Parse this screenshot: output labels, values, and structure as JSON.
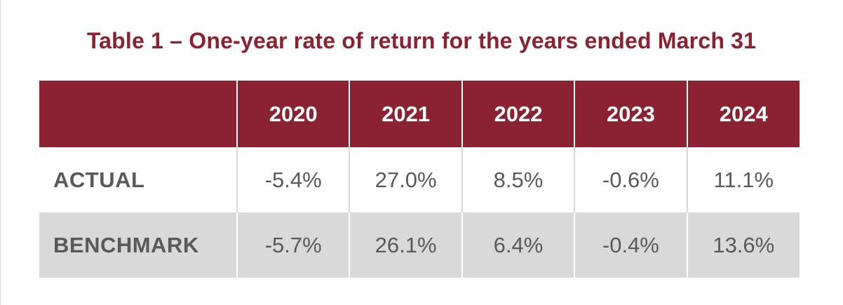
{
  "chart_data": {
    "type": "table",
    "title": "Table 1 – One-year rate of return for the years ended March 31",
    "columns": [
      "2020",
      "2021",
      "2022",
      "2023",
      "2024"
    ],
    "rows": [
      {
        "label": "ACTUAL",
        "values": [
          "-5.4%",
          "27.0%",
          "8.5%",
          "-0.6%",
          "11.1%"
        ]
      },
      {
        "label": "BENCHMARK",
        "values": [
          "-5.7%",
          "26.1%",
          "6.4%",
          "-0.4%",
          "13.6%"
        ]
      }
    ]
  },
  "colors": {
    "header_background": "#8a2232",
    "title_text": "#8a2232",
    "body_text": "#58595b",
    "benchmark_row_background": "#d9d9da"
  }
}
